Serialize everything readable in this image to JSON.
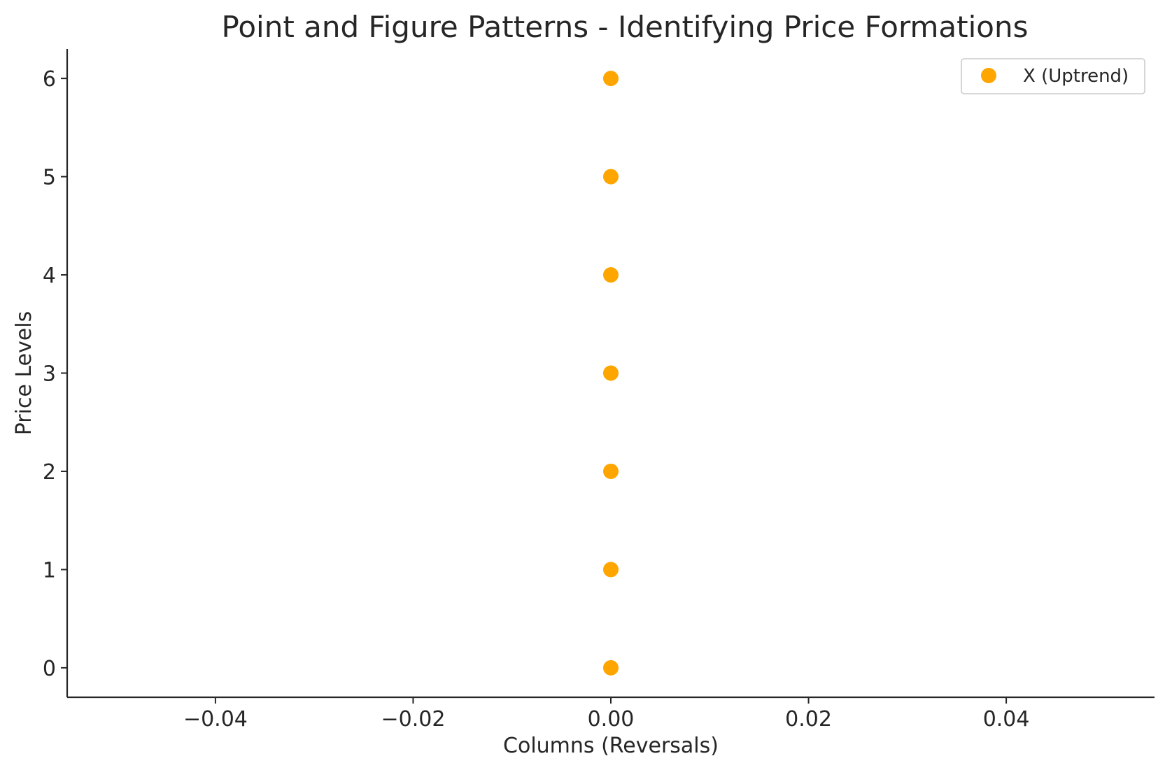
{
  "chart_data": {
    "type": "scatter",
    "title": "Point and Figure Patterns - Identifying Price Formations",
    "xlabel": "Columns (Reversals)",
    "ylabel": "Price Levels",
    "xlim": [
      -0.055,
      0.055
    ],
    "ylim": [
      -0.3,
      6.3
    ],
    "xticks": [
      -0.04,
      -0.02,
      0.0,
      0.02,
      0.04
    ],
    "xtick_labels": [
      "−0.04",
      "−0.02",
      "0.00",
      "0.02",
      "0.04"
    ],
    "yticks": [
      0,
      1,
      2,
      3,
      4,
      5,
      6
    ],
    "ytick_labels": [
      "0",
      "1",
      "2",
      "3",
      "4",
      "5",
      "6"
    ],
    "grid": false,
    "legend_position": "top-right",
    "series": [
      {
        "name": "X (Uptrend)",
        "color": "#FFA500",
        "marker": "circle",
        "points": [
          {
            "x": 0,
            "y": 0
          },
          {
            "x": 0,
            "y": 1
          },
          {
            "x": 0,
            "y": 2
          },
          {
            "x": 0,
            "y": 3
          },
          {
            "x": 0,
            "y": 4
          },
          {
            "x": 0,
            "y": 5
          },
          {
            "x": 0,
            "y": 6
          }
        ]
      }
    ]
  }
}
